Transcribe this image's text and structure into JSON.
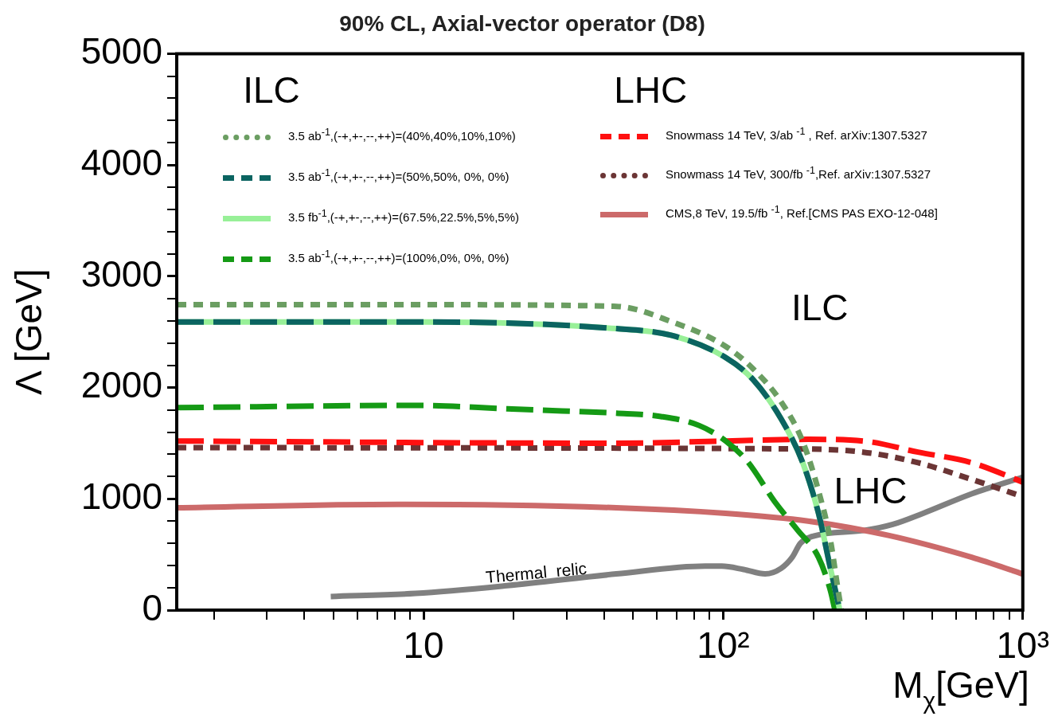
{
  "chart_data": {
    "type": "line",
    "title": "90% CL, Axial-vector operator (D8)",
    "xlabel": "M$_{χ}$[GeV]",
    "ylabel": "Λ [GeV]",
    "log": "x",
    "grid": false,
    "legend": "top",
    "line_style": "solid",
    "marker": "none",
    "xlim": [
      1.5,
      1000
    ],
    "ylim": [
      0,
      5000
    ],
    "xticks": [
      {
        "value": 2,
        "label": null
      },
      {
        "value": 3,
        "label": null
      },
      {
        "value": 4,
        "label": null
      },
      {
        "value": 5,
        "label": null
      },
      {
        "value": 6,
        "label": null
      },
      {
        "value": 7,
        "label": null
      },
      {
        "value": 8,
        "label": null
      },
      {
        "value": 9,
        "label": null
      },
      10,
      {
        "value": 20,
        "label": null
      },
      {
        "value": 30,
        "label": null
      },
      {
        "value": 40,
        "label": null
      },
      {
        "value": 50,
        "label": null
      },
      {
        "value": 60,
        "label": null
      },
      {
        "value": 70,
        "label": null
      },
      {
        "value": 80,
        "label": null
      },
      {
        "value": 90,
        "label": null
      },
      {
        "value": 100,
        "label": "10²"
      },
      {
        "value": 200,
        "label": null
      },
      {
        "value": 300,
        "label": null
      },
      {
        "value": 400,
        "label": null
      },
      {
        "value": 500,
        "label": null
      },
      {
        "value": 600,
        "label": null
      },
      {
        "value": 700,
        "label": null
      },
      {
        "value": 800,
        "label": null
      },
      {
        "value": 900,
        "label": null
      },
      {
        "value": 1000,
        "label": "10³"
      }
    ],
    "yticks": [
      0,
      {
        "value": 200,
        "label": null
      },
      {
        "value": 400,
        "label": null
      },
      {
        "value": 600,
        "label": null
      },
      {
        "value": 800,
        "label": null
      },
      1000,
      {
        "value": 1200,
        "label": null
      },
      {
        "value": 1400,
        "label": null
      },
      {
        "value": 1600,
        "label": null
      },
      {
        "value": 1800,
        "label": null
      },
      2000,
      {
        "value": 2200,
        "label": null
      },
      {
        "value": 2400,
        "label": null
      },
      {
        "value": 2600,
        "label": null
      },
      {
        "value": 2800,
        "label": null
      },
      3000,
      {
        "value": 3200,
        "label": null
      },
      {
        "value": 3400,
        "label": null
      },
      {
        "value": 3600,
        "label": null
      },
      {
        "value": 3800,
        "label": null
      },
      4000,
      {
        "value": 4200,
        "label": null
      },
      {
        "value": 4400,
        "label": null
      },
      {
        "value": 4600,
        "label": null
      },
      {
        "value": 4800,
        "label": null
      },
      5000
    ],
    "series": [
      {
        "name": "3.5 ab$^{-1}$,(-+,+-,--,++)=(40%,40%,10%,10%)",
        "color": "#6b9e62",
        "line_style": "dotted",
        "x": [
          1.5,
          10,
          44,
          67,
          102,
          126,
          156,
          184,
          208,
          228,
          242,
          248
        ],
        "values": [
          2745,
          2745,
          2730,
          2594,
          2370,
          2168,
          1873,
          1520,
          1073,
          627,
          173,
          0
        ]
      },
      {
        "name": "3.5 ab$^{-1}$,(-+,+-,--,++)=(50%,50%, 0%, 0%)",
        "color": "#0b6461",
        "line_style": "dashed",
        "x": [
          1.5,
          10,
          44,
          67,
          102,
          126,
          156,
          184,
          208,
          228,
          245
        ],
        "values": [
          2590,
          2590,
          2530,
          2470,
          2270,
          2070,
          1720,
          1330,
          870,
          375,
          0
        ]
      },
      {
        "name": "3.5 fb$^{-1}$,(-+,+-,--,++)=(67.5%,22.5%,5%,5%)",
        "color": "#98f098",
        "x": [
          1.5,
          10,
          44,
          67,
          102,
          126,
          156,
          184,
          208,
          228,
          245
        ],
        "values": [
          2590,
          2590,
          2530,
          2470,
          2270,
          2070,
          1720,
          1330,
          870,
          375,
          0
        ]
      },
      {
        "name": "3.5 ab$^{-1}$,(-+,+-,--,++)=(100%,0%, 0%, 0%)",
        "color": "#159a15",
        "line_style": "dashed",
        "x": [
          1.5,
          9.4,
          19,
          29,
          44,
          62,
          83,
          102,
          121,
          149,
          177,
          208,
          228,
          236
        ],
        "values": [
          1820,
          1840,
          1810,
          1790,
          1770,
          1740,
          1660,
          1520,
          1330,
          970,
          720,
          475,
          175,
          0
        ]
      },
      {
        "name": "Snowmass 14 TeV, 3/ab $^{-1}$ , Ref. arXiv:1307.5327",
        "color": "#ff1010",
        "line_style": "dashed",
        "x": [
          1.5,
          44,
          102,
          192,
          293,
          447,
          675,
          950,
          1000
        ],
        "values": [
          1520,
          1500,
          1520,
          1535,
          1520,
          1420,
          1325,
          1175,
          1150
        ]
      },
      {
        "name": "Snowmass 14 TeV, 300/fb $^{-1}$,Ref. arXiv:1307.5327",
        "color": "#6b3535",
        "line_style": "dotted",
        "x": [
          1.5,
          156,
          293,
          447,
          675,
          1000
        ],
        "values": [
          1460,
          1450,
          1420,
          1325,
          1175,
          1020
        ]
      },
      {
        "name": "CMS,8 TeV, 19.5/fb $^{-1}$, Ref.[CMS PAS EXO-12-048]",
        "color": "#cc6a6a",
        "x": [
          1.5,
          8.3,
          44,
          102,
          192,
          358,
          675,
          1000
        ],
        "values": [
          920,
          950,
          920,
          870,
          800,
          670,
          475,
          325
        ]
      },
      {
        "color": "#808080",
        "x": [
          4.9,
          9.4,
          19,
          44,
          87,
          99,
          117,
          138,
          156,
          170,
          181,
          200,
          293,
          368,
          465,
          675,
          1000
        ],
        "values": [
          122,
          150,
          220,
          325,
          395,
          395,
          365,
          325,
          375,
          475,
          600,
          665,
          715,
          770,
          870,
          1045,
          1195
        ]
      }
    ],
    "annotations": [
      "ILC",
      "LHC",
      "ILC",
      "LHC",
      "Thermal  relic"
    ]
  }
}
